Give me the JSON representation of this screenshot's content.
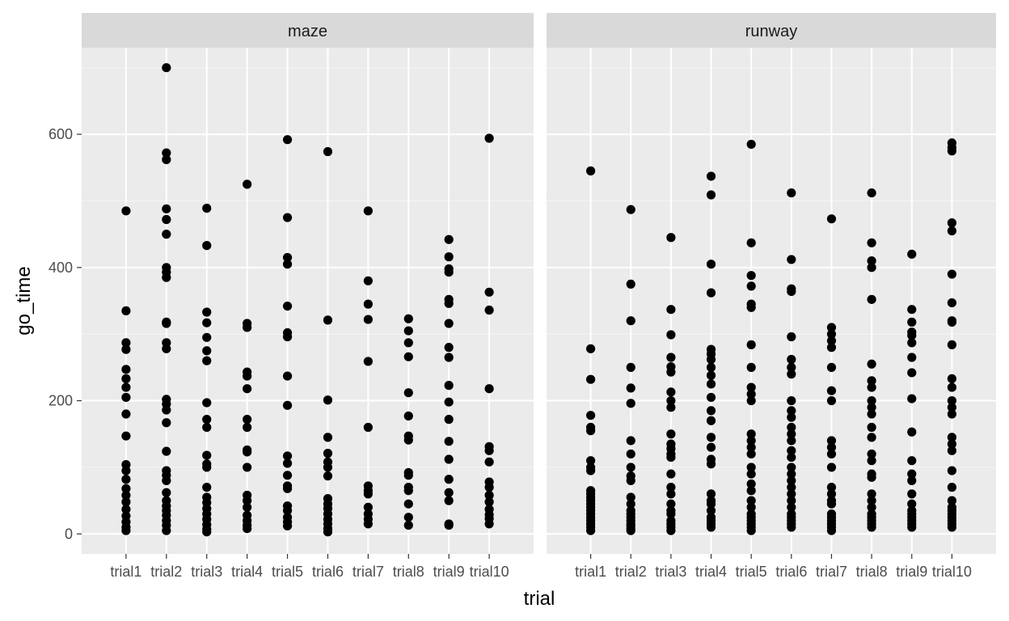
{
  "chart_data": {
    "type": "scatter",
    "facet_type": "wrap",
    "xlabel": "trial",
    "ylabel": "go_time",
    "categories": [
      "trial1",
      "trial2",
      "trial3",
      "trial4",
      "trial5",
      "trial6",
      "trial7",
      "trial8",
      "trial9",
      "trial10"
    ],
    "ylim": [
      -30,
      730
    ],
    "yticks": [
      0,
      200,
      400,
      600
    ],
    "grid": true,
    "legend": "none",
    "colors": {
      "panel": "#ebebeb",
      "strip": "#d9d9d9",
      "grid_major": "#ffffff",
      "grid_minor": "#f5f5f5",
      "point": "#000000",
      "tick": "#333333"
    },
    "panels": [
      {
        "name": "maze",
        "points": [
          [
            485,
            335,
            287,
            277,
            247,
            233,
            220,
            205,
            180,
            147,
            104,
            95,
            82,
            68,
            58,
            48,
            37,
            27,
            18,
            10,
            5
          ],
          [
            700,
            572,
            562,
            488,
            472,
            450,
            400,
            393,
            385,
            318,
            316,
            287,
            278,
            202,
            195,
            186,
            167,
            124,
            95,
            88,
            80,
            62,
            50,
            42,
            35,
            28,
            20,
            13,
            5
          ],
          [
            489,
            433,
            333,
            317,
            295,
            275,
            260,
            197,
            172,
            160,
            118,
            105,
            100,
            70,
            55,
            47,
            38,
            30,
            22,
            14,
            7,
            3
          ],
          [
            525,
            316,
            310,
            243,
            237,
            218,
            172,
            160,
            126,
            123,
            100,
            58,
            50,
            40,
            28,
            20,
            13,
            8
          ],
          [
            592,
            475,
            415,
            405,
            342,
            302,
            296,
            237,
            193,
            117,
            106,
            88,
            72,
            68,
            42,
            35,
            25,
            18,
            12
          ],
          [
            574,
            321,
            201,
            145,
            121,
            108,
            100,
            87,
            53,
            45,
            38,
            30,
            22,
            15,
            8,
            3
          ],
          [
            485,
            380,
            345,
            322,
            259,
            160,
            72,
            65,
            60,
            40,
            30,
            22,
            15
          ],
          [
            323,
            305,
            287,
            266,
            212,
            177,
            147,
            141,
            92,
            88,
            70,
            65,
            45,
            25,
            13
          ],
          [
            442,
            416,
            398,
            393,
            352,
            346,
            316,
            280,
            265,
            223,
            198,
            172,
            139,
            112,
            82,
            62,
            50,
            15,
            13
          ],
          [
            594,
            363,
            336,
            218,
            131,
            125,
            108,
            78,
            70,
            58,
            48,
            37,
            29,
            23,
            15
          ]
        ]
      },
      {
        "name": "runway",
        "points": [
          [
            545,
            278,
            232,
            178,
            160,
            155,
            110,
            100,
            95,
            65,
            60,
            55,
            50,
            45,
            40,
            35,
            30,
            25,
            20,
            15,
            10,
            5
          ],
          [
            487,
            375,
            320,
            250,
            219,
            196,
            140,
            120,
            100,
            87,
            80,
            55,
            45,
            35,
            30,
            25,
            20,
            15,
            12,
            8,
            5
          ],
          [
            445,
            337,
            299,
            265,
            251,
            243,
            213,
            200,
            190,
            150,
            135,
            128,
            120,
            115,
            90,
            70,
            60,
            45,
            35,
            30,
            20,
            15,
            10,
            5
          ],
          [
            537,
            509,
            405,
            362,
            277,
            270,
            262,
            250,
            238,
            225,
            205,
            185,
            170,
            145,
            130,
            112,
            105,
            60,
            50,
            45,
            35,
            25,
            20,
            15,
            10
          ],
          [
            585,
            437,
            388,
            372,
            345,
            340,
            284,
            250,
            220,
            210,
            200,
            150,
            140,
            130,
            120,
            100,
            90,
            75,
            65,
            50,
            40,
            30,
            25,
            20,
            15,
            10,
            5
          ],
          [
            512,
            412,
            368,
            364,
            296,
            262,
            250,
            240,
            200,
            185,
            175,
            160,
            150,
            140,
            125,
            115,
            100,
            90,
            80,
            70,
            60,
            50,
            40,
            30,
            25,
            20,
            15,
            10
          ],
          [
            473,
            310,
            300,
            290,
            280,
            250,
            215,
            200,
            140,
            130,
            120,
            100,
            70,
            60,
            50,
            45,
            30,
            25,
            20,
            15,
            10,
            5
          ],
          [
            512,
            437,
            410,
            400,
            352,
            255,
            230,
            220,
            200,
            190,
            180,
            160,
            145,
            120,
            110,
            90,
            85,
            60,
            50,
            40,
            30,
            25,
            20,
            15,
            10
          ],
          [
            420,
            337,
            318,
            303,
            298,
            287,
            265,
            242,
            203,
            153,
            110,
            90,
            80,
            60,
            45,
            35,
            30,
            25,
            20,
            15,
            10
          ],
          [
            587,
            580,
            575,
            467,
            455,
            390,
            347,
            320,
            318,
            284,
            233,
            220,
            200,
            190,
            180,
            145,
            135,
            125,
            95,
            70,
            50,
            40,
            35,
            30,
            25,
            20,
            15,
            10
          ]
        ]
      }
    ]
  }
}
